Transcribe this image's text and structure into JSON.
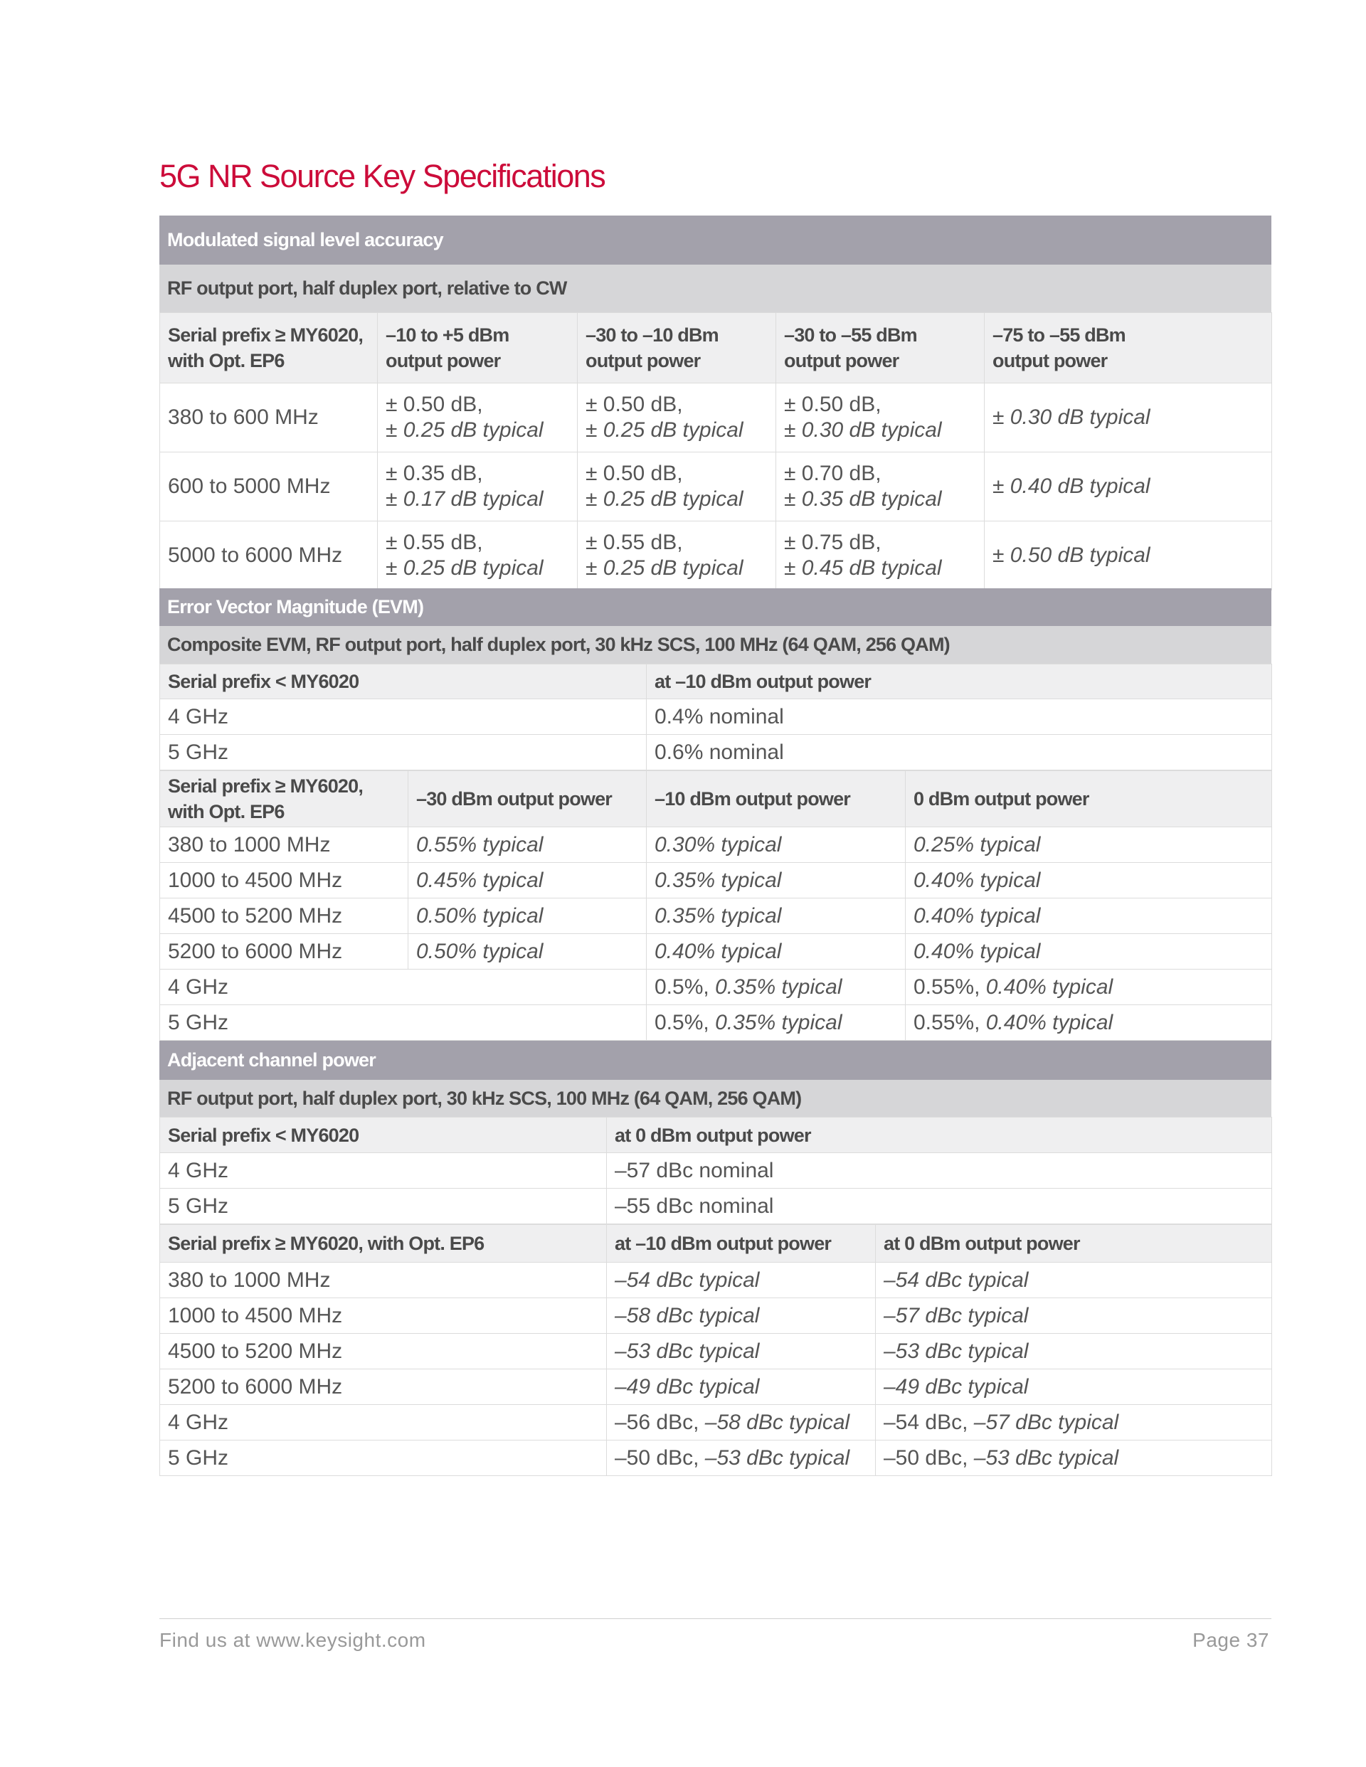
{
  "title": "5G NR Source Key Specifications",
  "sections": [
    {
      "title": "Modulated signal level accuracy",
      "subtitles": [
        "RF output port, half duplex port, relative to CW"
      ],
      "tables": [
        {
          "header": [
            "Serial prefix ≥ MY6020,\nwith Opt. EP6",
            "–10 to +5 dBm\noutput power",
            "–30 to –10 dBm\noutput power",
            "–30 to –55 dBm\noutput power",
            "–75 to –55 dBm\noutput power"
          ],
          "rows": [
            [
              "380 to 600 MHz",
              {
                "v": "± 0.50 dB,",
                "t": "± 0.25 dB typical"
              },
              {
                "v": "± 0.50 dB,",
                "t": "± 0.25 dB typical"
              },
              {
                "v": "± 0.50 dB,",
                "t": "± 0.30 dB typical"
              },
              {
                "t": "± 0.30 dB typical"
              }
            ],
            [
              "600 to 5000 MHz",
              {
                "v": "± 0.35 dB,",
                "t": "± 0.17 dB typical"
              },
              {
                "v": "± 0.50 dB,",
                "t": "± 0.25 dB typical"
              },
              {
                "v": "± 0.70 dB,",
                "t": "± 0.35 dB typical"
              },
              {
                "t": "± 0.40 dB typical"
              }
            ],
            [
              "5000 to 6000 MHz",
              {
                "v": "± 0.55 dB,",
                "t": "± 0.25 dB typical"
              },
              {
                "v": "± 0.55 dB,",
                "t": "± 0.25 dB typical"
              },
              {
                "v": "± 0.75 dB,",
                "t": "± 0.45 dB typical"
              },
              {
                "t": "± 0.50 dB typical"
              }
            ]
          ]
        }
      ]
    },
    {
      "title": "Error Vector Magnitude (EVM)",
      "subtitles": [
        "Composite EVM, RF output port, half duplex port, 30 kHz SCS, 100 MHz (64 QAM, 256 QAM)"
      ],
      "tables": [
        {
          "header": [
            "Serial prefix < MY6020",
            "at –10 dBm output power"
          ],
          "rows": [
            [
              "4 GHz",
              "0.4% nominal"
            ],
            [
              "5 GHz",
              "0.6% nominal"
            ]
          ]
        },
        {
          "header": [
            "Serial prefix ≥ MY6020,\nwith Opt. EP6",
            "–30 dBm output power",
            "–10 dBm output power",
            "0 dBm output power"
          ],
          "rows": [
            [
              "380 to 1000 MHz",
              {
                "t": "0.55% typical"
              },
              {
                "t": "0.30% typical"
              },
              {
                "t": "0.25% typical"
              }
            ],
            [
              "1000 to 4500 MHz",
              {
                "t": "0.45% typical"
              },
              {
                "t": "0.35% typical"
              },
              {
                "t": "0.40% typical"
              }
            ],
            [
              "4500 to 5200 MHz",
              {
                "t": "0.50% typical"
              },
              {
                "t": "0.35% typical"
              },
              {
                "t": "0.40% typical"
              }
            ],
            [
              "5200 to 6000 MHz",
              {
                "t": "0.50% typical"
              },
              {
                "t": "0.40% typical"
              },
              {
                "t": "0.40% typical"
              }
            ],
            [
              "4 GHz",
              {
                "v": "0.5%, ",
                "t": "0.35% typical"
              },
              {
                "v": "0.55%, ",
                "t": "0.40% typical"
              }
            ],
            [
              "5 GHz",
              {
                "v": "0.5%, ",
                "t": "0.35% typical"
              },
              {
                "v": "0.55%, ",
                "t": "0.40% typical"
              }
            ]
          ]
        }
      ]
    },
    {
      "title": "Adjacent channel power",
      "subtitles": [
        "RF output port, half duplex port, 30 kHz SCS, 100 MHz (64 QAM, 256 QAM)"
      ],
      "tables": [
        {
          "header": [
            "Serial prefix < MY6020",
            "at 0 dBm output power"
          ],
          "rows": [
            [
              "4 GHz",
              "–57 dBc nominal"
            ],
            [
              "5 GHz",
              "–55 dBc nominal"
            ]
          ]
        },
        {
          "header": [
            "Serial prefix ≥ MY6020, with Opt. EP6",
            "at –10 dBm output power",
            "at 0 dBm output power"
          ],
          "rows": [
            [
              "380 to 1000 MHz",
              {
                "t": "–54 dBc typical"
              },
              {
                "t": "–54 dBc typical"
              }
            ],
            [
              "1000 to 4500 MHz",
              {
                "t": "–58 dBc typical"
              },
              {
                "t": "–57 dBc typical"
              }
            ],
            [
              "4500 to 5200 MHz",
              {
                "t": "–53 dBc typical"
              },
              {
                "t": "–53 dBc typical"
              }
            ],
            [
              "5200 to 6000 MHz",
              {
                "t": "–49 dBc typical"
              },
              {
                "t": "–49 dBc typical"
              }
            ],
            [
              "4 GHz",
              {
                "v": "–56 dBc, ",
                "t": "–58 dBc typical"
              },
              {
                "v": "–54 dBc, ",
                "t": "–57 dBc typical"
              }
            ],
            [
              "5 GHz",
              {
                "v": "–50 dBc, ",
                "t": "–53 dBc typical"
              },
              {
                "v": "–50 dBc, ",
                "t": "–53 dBc typical"
              }
            ]
          ]
        }
      ]
    }
  ],
  "footer": {
    "left": "Find us at www.keysight.com",
    "right": "Page 37"
  }
}
